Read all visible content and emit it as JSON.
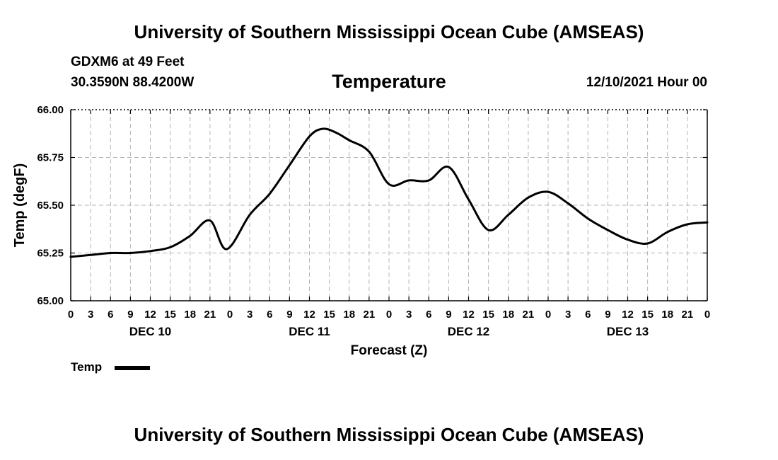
{
  "header": {
    "title": "University of Southern Mississippi Ocean Cube (AMSEAS)",
    "station": "GDXM6 at 49 Feet",
    "coords": "30.3590N  88.4200W",
    "variable": "Temperature",
    "datetime": "12/10/2021 Hour 00"
  },
  "footer": {
    "title": "University of Southern Mississippi Ocean Cube (AMSEAS)"
  },
  "chart_data": {
    "type": "line",
    "title": "Temperature",
    "xlabel": "Forecast (Z)",
    "ylabel": "Temp (degF)",
    "ylim": [
      65.0,
      66.0
    ],
    "xlim_hours": [
      0,
      96
    ],
    "grid": true,
    "yticks": [
      "65.00",
      "65.25",
      "65.50",
      "65.75",
      "66.00"
    ],
    "ytick_values": [
      65.0,
      65.25,
      65.5,
      65.75,
      66.0
    ],
    "xticks": [
      "0",
      "3",
      "6",
      "9",
      "12",
      "15",
      "18",
      "21",
      "0",
      "3",
      "6",
      "9",
      "12",
      "15",
      "18",
      "21",
      "0",
      "3",
      "6",
      "9",
      "12",
      "15",
      "18",
      "21",
      "0",
      "3",
      "6",
      "9",
      "12",
      "15",
      "18",
      "21",
      "0"
    ],
    "day_labels": [
      {
        "label": "DEC 10",
        "hour": 12
      },
      {
        "label": "DEC 11",
        "hour": 36
      },
      {
        "label": "DEC 12",
        "hour": 60
      },
      {
        "label": "DEC 13",
        "hour": 84
      }
    ],
    "legend": [
      {
        "name": "Temp",
        "color": "#000000"
      }
    ],
    "series": [
      {
        "name": "Temp",
        "color": "#000000",
        "x": [
          0,
          3,
          6,
          9,
          12,
          15,
          18,
          21,
          23.5,
          27,
          30,
          33,
          36,
          38,
          40,
          42,
          45,
          48,
          51,
          54,
          57,
          60,
          63,
          66,
          69,
          72,
          75,
          78,
          81,
          84,
          87,
          90,
          93,
          96
        ],
        "values": [
          65.23,
          65.24,
          65.25,
          65.25,
          65.26,
          65.28,
          65.34,
          65.42,
          65.27,
          65.45,
          65.56,
          65.71,
          65.86,
          65.9,
          65.88,
          65.84,
          65.78,
          65.61,
          65.63,
          65.63,
          65.7,
          65.53,
          65.37,
          65.45,
          65.54,
          65.57,
          65.51,
          65.43,
          65.37,
          65.32,
          65.3,
          65.36,
          65.4,
          65.41
        ]
      }
    ]
  }
}
